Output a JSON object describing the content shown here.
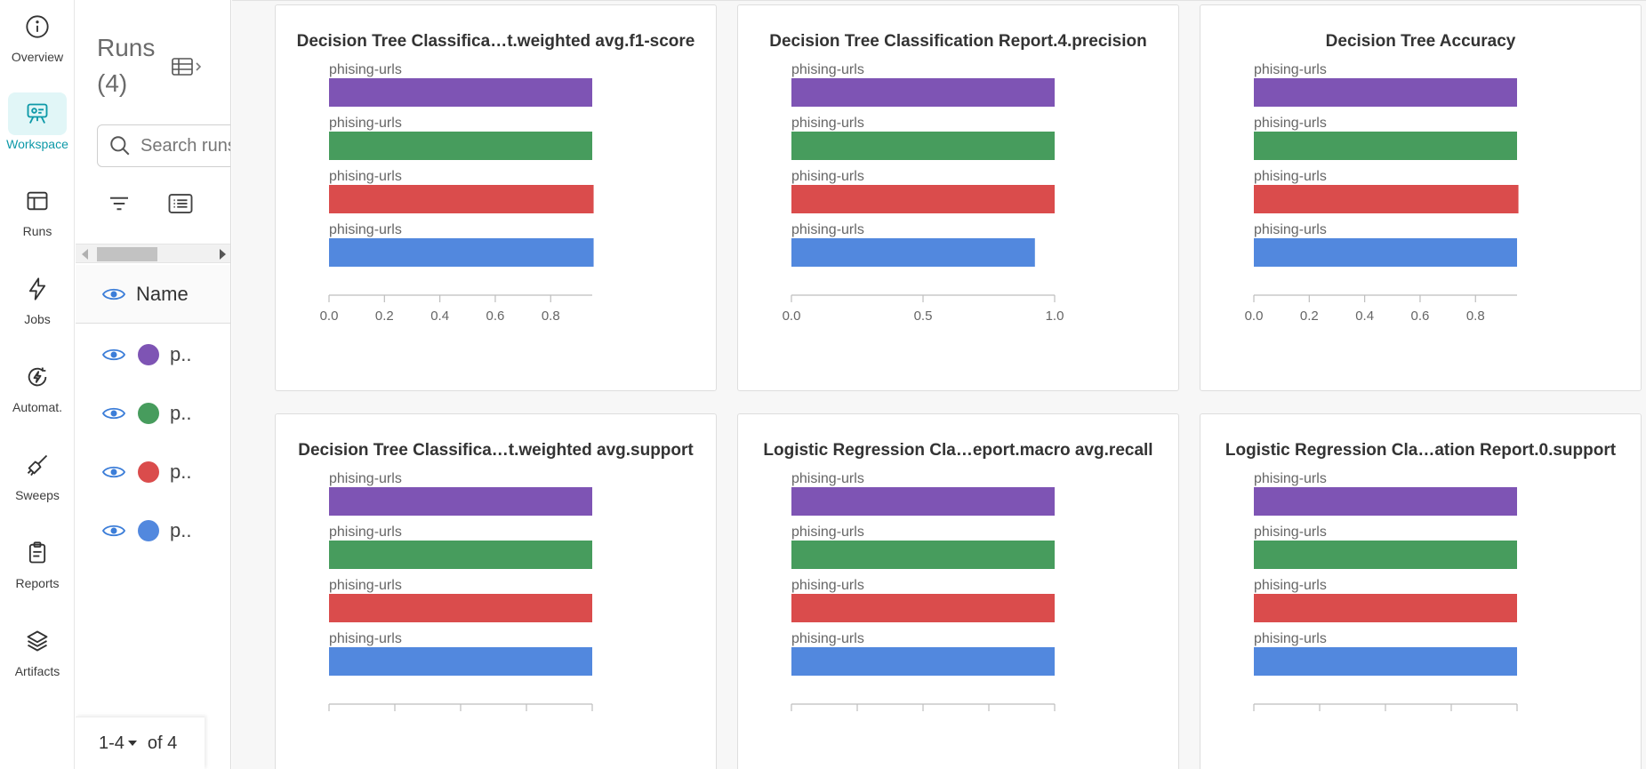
{
  "nav": {
    "items": [
      {
        "label": "Overview",
        "icon": "info-circle-icon"
      },
      {
        "label": "Workspace",
        "icon": "workspace-icon",
        "active": true
      },
      {
        "label": "Runs",
        "icon": "table-icon"
      },
      {
        "label": "Jobs",
        "icon": "lightning-icon"
      },
      {
        "label": "Automat.",
        "icon": "automation-icon"
      },
      {
        "label": "Sweeps",
        "icon": "broom-icon"
      },
      {
        "label": "Reports",
        "icon": "clipboard-icon"
      },
      {
        "label": "Artifacts",
        "icon": "layers-icon"
      }
    ],
    "accent": "#0d99a8"
  },
  "runs": {
    "title": "Runs",
    "count": "(4)",
    "search_placeholder": "Search runs",
    "column_header": "Name",
    "rows": [
      {
        "name": "p..",
        "color": "#7e54b4"
      },
      {
        "name": "p..",
        "color": "#479c5d"
      },
      {
        "name": "p..",
        "color": "#da4c4c"
      },
      {
        "name": "p..",
        "color": "#5288de"
      }
    ],
    "pager": {
      "range": "1-4",
      "total": "of 4"
    }
  },
  "series_colors": [
    "#7e54b4",
    "#479c5d",
    "#da4c4c",
    "#5288de"
  ],
  "chart_data": [
    {
      "type": "bar",
      "title": "Decision Tree Classifica…t.weighted avg.f1-score",
      "categories": [
        "phising-urls",
        "phising-urls",
        "phising-urls",
        "phising-urls"
      ],
      "values": [
        0.95,
        0.95,
        0.955,
        0.955
      ],
      "xlim": [
        0,
        0.95
      ],
      "xticks": [
        "0.0",
        "0.2",
        "0.4",
        "0.6",
        "0.8"
      ],
      "xtick_values": [
        0,
        0.2,
        0.4,
        0.6,
        0.8
      ]
    },
    {
      "type": "bar",
      "title": "Decision Tree Classification Report.4.precision",
      "categories": [
        "phising-urls",
        "phising-urls",
        "phising-urls",
        "phising-urls"
      ],
      "values": [
        1.0,
        1.0,
        1.0,
        0.925
      ],
      "xlim": [
        0,
        1.0
      ],
      "xticks": [
        "0.0",
        "0.5",
        "1.0"
      ],
      "xtick_values": [
        0,
        0.5,
        1.0
      ]
    },
    {
      "type": "bar",
      "title": "Decision Tree Accuracy",
      "categories": [
        "phising-urls",
        "phising-urls",
        "phising-urls",
        "phising-urls"
      ],
      "values": [
        0.95,
        0.95,
        0.955,
        0.95
      ],
      "xlim": [
        0,
        0.95
      ],
      "xticks": [
        "0.0",
        "0.2",
        "0.4",
        "0.6",
        "0.8"
      ],
      "xtick_values": [
        0,
        0.2,
        0.4,
        0.6,
        0.8
      ]
    },
    {
      "type": "bar",
      "title": "Decision Tree Classifica…t.weighted avg.support",
      "categories": [
        "phising-urls",
        "phising-urls",
        "phising-urls",
        "phising-urls"
      ],
      "values": [
        1,
        1,
        1,
        1
      ],
      "xlim": [
        0,
        1
      ],
      "xticks": [],
      "xtick_values": []
    },
    {
      "type": "bar",
      "title": "Logistic Regression Cla…eport.macro avg.recall",
      "categories": [
        "phising-urls",
        "phising-urls",
        "phising-urls",
        "phising-urls"
      ],
      "values": [
        1,
        1,
        1,
        1
      ],
      "xlim": [
        0,
        1
      ],
      "xticks": [],
      "xtick_values": []
    },
    {
      "type": "bar",
      "title": "Logistic Regression Cla…ation Report.0.support",
      "categories": [
        "phising-urls",
        "phising-urls",
        "phising-urls",
        "phising-urls"
      ],
      "values": [
        1,
        1,
        1,
        1
      ],
      "xlim": [
        0,
        1
      ],
      "xticks": [],
      "xtick_values": []
    }
  ]
}
